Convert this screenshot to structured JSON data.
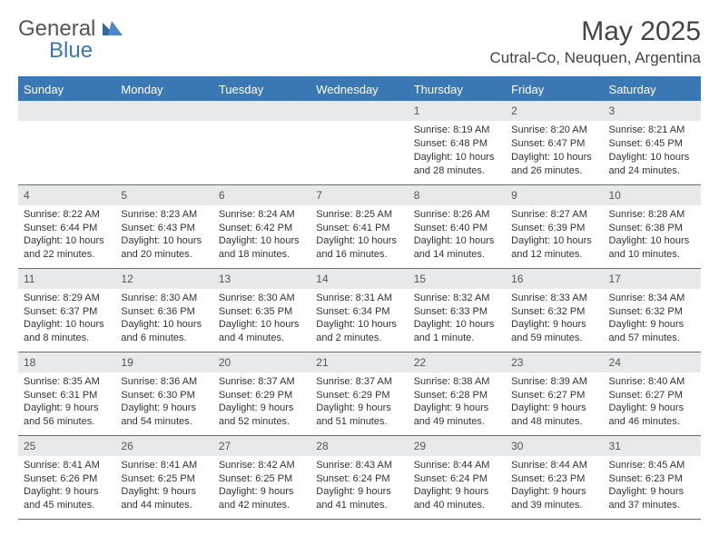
{
  "brand": {
    "general": "General",
    "blue": "Blue"
  },
  "header": {
    "title": "May 2025",
    "location": "Cutral-Co, Neuquen, Argentina"
  },
  "colors": {
    "accent": "#3a78b5",
    "header_bg": "#3a78b5",
    "header_text": "#ffffff",
    "daynum_bg": "#e8e9ea",
    "body_bg": "#ffffff",
    "text": "#333333"
  },
  "day_labels": [
    "Sunday",
    "Monday",
    "Tuesday",
    "Wednesday",
    "Thursday",
    "Friday",
    "Saturday"
  ],
  "weeks": [
    [
      null,
      null,
      null,
      null,
      {
        "n": "1",
        "sr": "Sunrise: 8:19 AM",
        "ss": "Sunset: 6:48 PM",
        "dl": "Daylight: 10 hours and 28 minutes."
      },
      {
        "n": "2",
        "sr": "Sunrise: 8:20 AM",
        "ss": "Sunset: 6:47 PM",
        "dl": "Daylight: 10 hours and 26 minutes."
      },
      {
        "n": "3",
        "sr": "Sunrise: 8:21 AM",
        "ss": "Sunset: 6:45 PM",
        "dl": "Daylight: 10 hours and 24 minutes."
      }
    ],
    [
      {
        "n": "4",
        "sr": "Sunrise: 8:22 AM",
        "ss": "Sunset: 6:44 PM",
        "dl": "Daylight: 10 hours and 22 minutes."
      },
      {
        "n": "5",
        "sr": "Sunrise: 8:23 AM",
        "ss": "Sunset: 6:43 PM",
        "dl": "Daylight: 10 hours and 20 minutes."
      },
      {
        "n": "6",
        "sr": "Sunrise: 8:24 AM",
        "ss": "Sunset: 6:42 PM",
        "dl": "Daylight: 10 hours and 18 minutes."
      },
      {
        "n": "7",
        "sr": "Sunrise: 8:25 AM",
        "ss": "Sunset: 6:41 PM",
        "dl": "Daylight: 10 hours and 16 minutes."
      },
      {
        "n": "8",
        "sr": "Sunrise: 8:26 AM",
        "ss": "Sunset: 6:40 PM",
        "dl": "Daylight: 10 hours and 14 minutes."
      },
      {
        "n": "9",
        "sr": "Sunrise: 8:27 AM",
        "ss": "Sunset: 6:39 PM",
        "dl": "Daylight: 10 hours and 12 minutes."
      },
      {
        "n": "10",
        "sr": "Sunrise: 8:28 AM",
        "ss": "Sunset: 6:38 PM",
        "dl": "Daylight: 10 hours and 10 minutes."
      }
    ],
    [
      {
        "n": "11",
        "sr": "Sunrise: 8:29 AM",
        "ss": "Sunset: 6:37 PM",
        "dl": "Daylight: 10 hours and 8 minutes."
      },
      {
        "n": "12",
        "sr": "Sunrise: 8:30 AM",
        "ss": "Sunset: 6:36 PM",
        "dl": "Daylight: 10 hours and 6 minutes."
      },
      {
        "n": "13",
        "sr": "Sunrise: 8:30 AM",
        "ss": "Sunset: 6:35 PM",
        "dl": "Daylight: 10 hours and 4 minutes."
      },
      {
        "n": "14",
        "sr": "Sunrise: 8:31 AM",
        "ss": "Sunset: 6:34 PM",
        "dl": "Daylight: 10 hours and 2 minutes."
      },
      {
        "n": "15",
        "sr": "Sunrise: 8:32 AM",
        "ss": "Sunset: 6:33 PM",
        "dl": "Daylight: 10 hours and 1 minute."
      },
      {
        "n": "16",
        "sr": "Sunrise: 8:33 AM",
        "ss": "Sunset: 6:32 PM",
        "dl": "Daylight: 9 hours and 59 minutes."
      },
      {
        "n": "17",
        "sr": "Sunrise: 8:34 AM",
        "ss": "Sunset: 6:32 PM",
        "dl": "Daylight: 9 hours and 57 minutes."
      }
    ],
    [
      {
        "n": "18",
        "sr": "Sunrise: 8:35 AM",
        "ss": "Sunset: 6:31 PM",
        "dl": "Daylight: 9 hours and 56 minutes."
      },
      {
        "n": "19",
        "sr": "Sunrise: 8:36 AM",
        "ss": "Sunset: 6:30 PM",
        "dl": "Daylight: 9 hours and 54 minutes."
      },
      {
        "n": "20",
        "sr": "Sunrise: 8:37 AM",
        "ss": "Sunset: 6:29 PM",
        "dl": "Daylight: 9 hours and 52 minutes."
      },
      {
        "n": "21",
        "sr": "Sunrise: 8:37 AM",
        "ss": "Sunset: 6:29 PM",
        "dl": "Daylight: 9 hours and 51 minutes."
      },
      {
        "n": "22",
        "sr": "Sunrise: 8:38 AM",
        "ss": "Sunset: 6:28 PM",
        "dl": "Daylight: 9 hours and 49 minutes."
      },
      {
        "n": "23",
        "sr": "Sunrise: 8:39 AM",
        "ss": "Sunset: 6:27 PM",
        "dl": "Daylight: 9 hours and 48 minutes."
      },
      {
        "n": "24",
        "sr": "Sunrise: 8:40 AM",
        "ss": "Sunset: 6:27 PM",
        "dl": "Daylight: 9 hours and 46 minutes."
      }
    ],
    [
      {
        "n": "25",
        "sr": "Sunrise: 8:41 AM",
        "ss": "Sunset: 6:26 PM",
        "dl": "Daylight: 9 hours and 45 minutes."
      },
      {
        "n": "26",
        "sr": "Sunrise: 8:41 AM",
        "ss": "Sunset: 6:25 PM",
        "dl": "Daylight: 9 hours and 44 minutes."
      },
      {
        "n": "27",
        "sr": "Sunrise: 8:42 AM",
        "ss": "Sunset: 6:25 PM",
        "dl": "Daylight: 9 hours and 42 minutes."
      },
      {
        "n": "28",
        "sr": "Sunrise: 8:43 AM",
        "ss": "Sunset: 6:24 PM",
        "dl": "Daylight: 9 hours and 41 minutes."
      },
      {
        "n": "29",
        "sr": "Sunrise: 8:44 AM",
        "ss": "Sunset: 6:24 PM",
        "dl": "Daylight: 9 hours and 40 minutes."
      },
      {
        "n": "30",
        "sr": "Sunrise: 8:44 AM",
        "ss": "Sunset: 6:23 PM",
        "dl": "Daylight: 9 hours and 39 minutes."
      },
      {
        "n": "31",
        "sr": "Sunrise: 8:45 AM",
        "ss": "Sunset: 6:23 PM",
        "dl": "Daylight: 9 hours and 37 minutes."
      }
    ]
  ]
}
